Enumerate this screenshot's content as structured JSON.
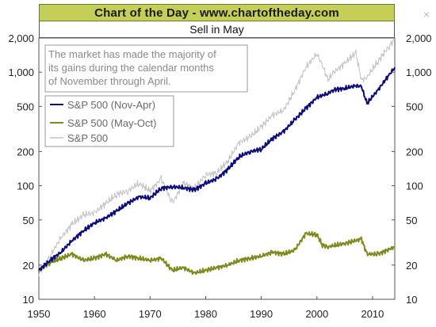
{
  "header": {
    "banner_title": "Chart of the Day - www.chartoftheday.com",
    "close_glyph": "×"
  },
  "colors": {
    "banner_bg": "#c4cf58",
    "nov_apr": "#0c0c7a",
    "may_oct": "#7f8a1e",
    "sp500": "#c2c2c2"
  },
  "chart_data": {
    "type": "line",
    "title": "Sell in May",
    "annotation": "The market has made the majority of its gains during the calendar months of November through April.",
    "annotation_lines": [
      "The market has made the majority of",
      "its gains during the calendar months",
      "of November through April."
    ],
    "x_ticks": [
      "1950",
      "1960",
      "1970",
      "1980",
      "1990",
      "2000",
      "2010"
    ],
    "y_ticks": [
      "10",
      "20",
      "50",
      "100",
      "200",
      "500",
      "1,000",
      "2,000"
    ],
    "y_tick_values": [
      10,
      20,
      50,
      100,
      200,
      500,
      1000,
      2000
    ],
    "y_scale": "log",
    "xlim": [
      1950,
      2014
    ],
    "ylim": [
      10,
      2000
    ],
    "grid": false,
    "legend_position": "top-left",
    "series": [
      {
        "name": "S&P 500 (Nov-Apr)",
        "color_key": "nov_apr",
        "x": [
          1950,
          1952,
          1954,
          1956,
          1958,
          1960,
          1962,
          1964,
          1966,
          1968,
          1970,
          1972,
          1974,
          1976,
          1978,
          1980,
          1982,
          1984,
          1986,
          1988,
          1990,
          1992,
          1994,
          1996,
          1998,
          2000,
          2002,
          2003,
          2005,
          2007,
          2008,
          2009,
          2011,
          2013,
          2014
        ],
        "y": [
          18,
          22,
          26,
          33,
          40,
          47,
          52,
          60,
          70,
          80,
          78,
          95,
          98,
          96,
          92,
          105,
          115,
          140,
          180,
          200,
          210,
          260,
          300,
          380,
          480,
          600,
          650,
          700,
          720,
          760,
          750,
          530,
          700,
          950,
          1100
        ]
      },
      {
        "name": "S&P 500 (May-Oct)",
        "color_key": "may_oct",
        "x": [
          1950,
          1952,
          1954,
          1956,
          1958,
          1960,
          1962,
          1964,
          1966,
          1968,
          1970,
          1972,
          1974,
          1976,
          1978,
          1980,
          1982,
          1984,
          1986,
          1988,
          1990,
          1992,
          1994,
          1996,
          1998,
          2000,
          2001,
          2002,
          2005,
          2008,
          2009,
          2011,
          2014
        ],
        "y": [
          18,
          21,
          23,
          25,
          22,
          23,
          25,
          22,
          24,
          23,
          22,
          23,
          18,
          19,
          17,
          18,
          19,
          20,
          22,
          23,
          24,
          26,
          25,
          27,
          38,
          37,
          30,
          29,
          31,
          34,
          25,
          25,
          29
        ]
      },
      {
        "name": "S&P 500",
        "color_key": "sp500",
        "x": [
          1950,
          1952,
          1954,
          1956,
          1958,
          1960,
          1962,
          1964,
          1966,
          1968,
          1970,
          1972,
          1974,
          1976,
          1978,
          1980,
          1982,
          1984,
          1986,
          1988,
          1990,
          1992,
          1994,
          1996,
          1998,
          2000,
          2001,
          2002,
          2003,
          2005,
          2007,
          2008,
          2009,
          2011,
          2013,
          2014
        ],
        "y": [
          17,
          24,
          35,
          46,
          55,
          58,
          70,
          84,
          90,
          105,
          90,
          115,
          70,
          105,
          95,
          125,
          130,
          165,
          240,
          270,
          330,
          420,
          460,
          690,
          1100,
          1450,
          1150,
          850,
          1000,
          1200,
          1480,
          850,
          900,
          1250,
          1700,
          1950
        ]
      }
    ]
  }
}
